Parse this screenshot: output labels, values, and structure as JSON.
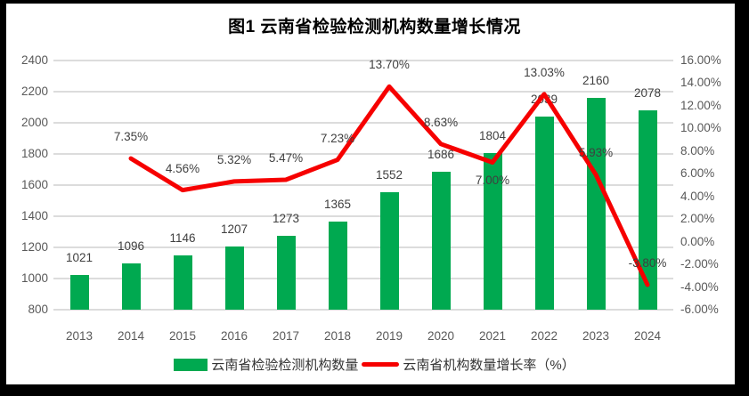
{
  "title": "图1 云南省检验检测机构数量增长情况",
  "legend": [
    {
      "label": "云南省检验检测机构数量",
      "type": "bar"
    },
    {
      "label": "云南省机构数量增长率（%）",
      "type": "line"
    }
  ],
  "colors": {
    "bar": "#00A950",
    "line": "#F60000",
    "grid": "#DCDCDC",
    "axis_text": "#595959",
    "label_text": "#3F3F3F",
    "frame": "#000000"
  },
  "chart_data": {
    "type": "bar",
    "subtype": "combo-bar-line-dual-axis",
    "title": "图1 云南省检验检测机构数量增长情况",
    "categories": [
      "2013",
      "2014",
      "2015",
      "2016",
      "2017",
      "2018",
      "2019",
      "2020",
      "2021",
      "2022",
      "2023",
      "2024"
    ],
    "series": [
      {
        "name": "云南省检验检测机构数量",
        "type": "bar",
        "axis": "left",
        "values": [
          1021,
          1096,
          1146,
          1207,
          1273,
          1365,
          1552,
          1686,
          1804,
          2039,
          2160,
          2078
        ],
        "value_labels": [
          "1021",
          "1096",
          "1146",
          "1207",
          "1273",
          "1365",
          "1552",
          "1686",
          "1804",
          "2039",
          "2160",
          "2078"
        ]
      },
      {
        "name": "云南省机构数量增长率（%）",
        "type": "line",
        "axis": "right",
        "values": [
          null,
          7.35,
          4.56,
          5.32,
          5.47,
          7.23,
          13.7,
          8.63,
          7.0,
          13.03,
          5.93,
          -3.8
        ],
        "value_labels": [
          "",
          "7.35%",
          "4.56%",
          "5.32%",
          "5.47%",
          "7.23%",
          "13.70%",
          "8.63%",
          "7.00%",
          "13.03%",
          "5.93%",
          "-3.80%"
        ],
        "label_below_indices": [
          8
        ]
      }
    ],
    "left_axis": {
      "min": 800,
      "max": 2400,
      "step": 200,
      "ticks": [
        "2400",
        "2200",
        "2000",
        "1800",
        "1600",
        "1400",
        "1200",
        "1000",
        "800"
      ]
    },
    "right_axis": {
      "min": -6,
      "max": 16,
      "step": 2,
      "ticks": [
        "16.00%",
        "14.00%",
        "12.00%",
        "10.00%",
        "8.00%",
        "6.00%",
        "4.00%",
        "2.00%",
        "0.00%",
        "-2.00%",
        "-4.00%",
        "-6.00%"
      ]
    },
    "grid": "horizontal",
    "legend_position": "bottom"
  }
}
